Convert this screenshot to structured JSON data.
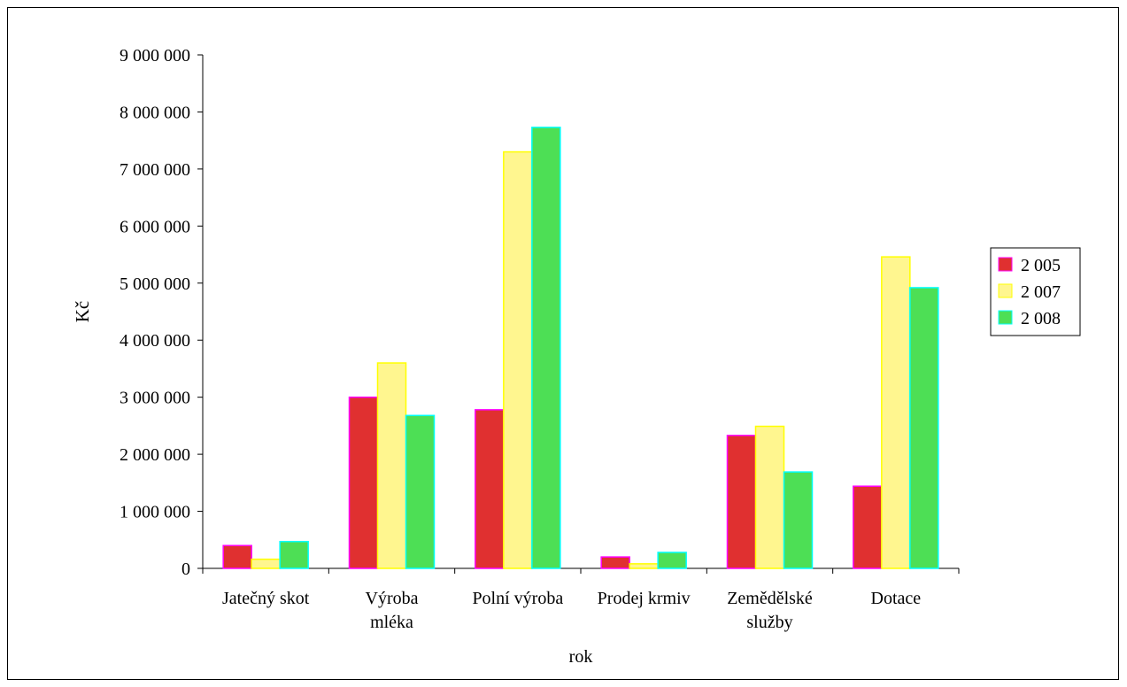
{
  "chart_data": {
    "type": "bar",
    "categories": [
      [
        "Jatečný skot"
      ],
      [
        "Výroba",
        "mléka"
      ],
      [
        "Polní výroba"
      ],
      [
        "Prodej krmiv"
      ],
      [
        "Zemědělské",
        "služby"
      ],
      [
        "Dotace"
      ]
    ],
    "series": [
      {
        "name": "2 005",
        "fill": "#e03030",
        "stroke": "#ff00ff",
        "values": [
          400000,
          3000000,
          2780000,
          200000,
          2330000,
          1440000
        ]
      },
      {
        "name": "2 007",
        "fill": "#fff68f",
        "stroke": "#ffff00",
        "values": [
          160000,
          3600000,
          7300000,
          80000,
          2490000,
          5460000
        ]
      },
      {
        "name": "2 008",
        "fill": "#4ddf55",
        "stroke": "#00ffff",
        "values": [
          470000,
          2680000,
          7730000,
          280000,
          1690000,
          4920000
        ]
      }
    ],
    "xlabel": "rok",
    "ylabel": "Kč",
    "ylim": [
      0,
      9000000
    ],
    "ytick_step": 1000000,
    "ytick_labels": [
      "0",
      "1 000 000",
      "2 000 000",
      "3 000 000",
      "4 000 000",
      "5 000 000",
      "6 000 000",
      "7 000 000",
      "8 000 000",
      "9 000 000"
    ],
    "legend_position": "right",
    "grid": false
  }
}
